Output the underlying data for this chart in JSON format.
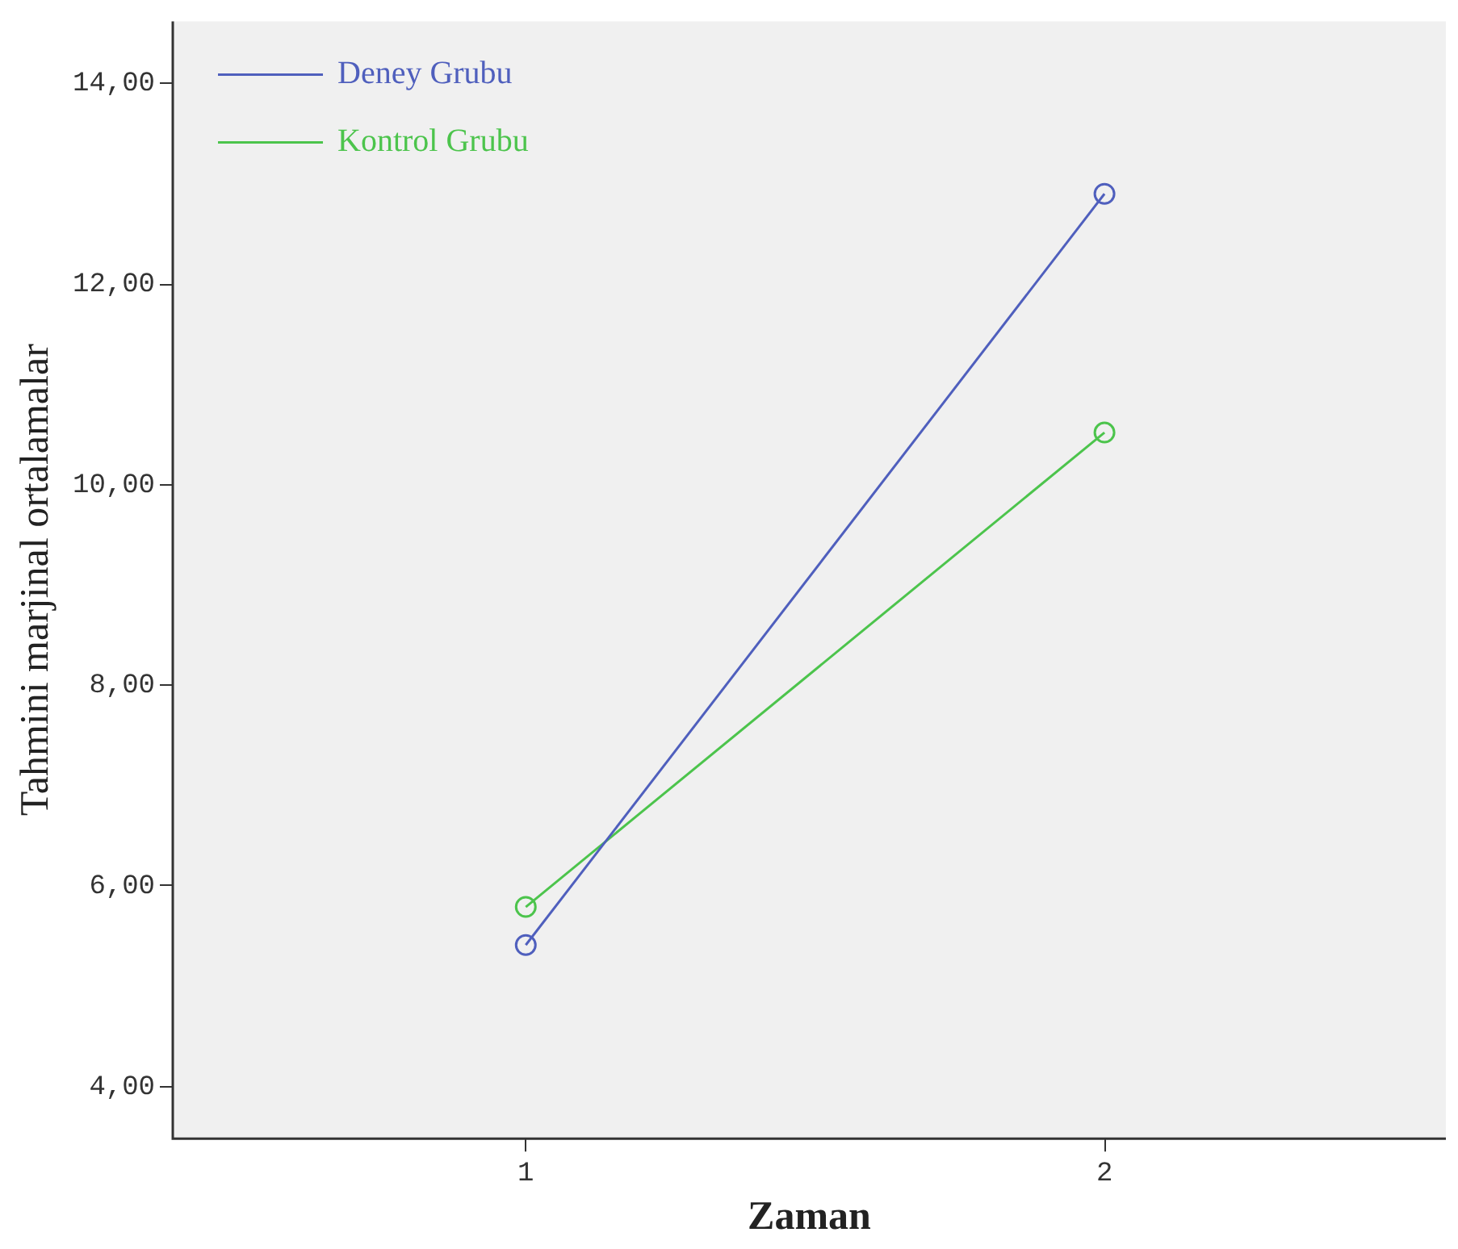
{
  "chart_data": {
    "type": "line",
    "xlabel": "Zaman",
    "ylabel": "Tahmini marjinal ortalamalar",
    "x": [
      1,
      2
    ],
    "xlim": [
      0.39,
      2.59
    ],
    "xticks": [
      1,
      2
    ],
    "series": [
      {
        "name": "Deney Grubu",
        "color": "#4f5fbd",
        "values": [
          5.41,
          12.9
        ]
      },
      {
        "name": "Kontrol Grubu",
        "color": "#4cc44c",
        "values": [
          5.79,
          10.52
        ]
      }
    ],
    "ylim": [
      3.48,
      14.62
    ],
    "yticks": [
      {
        "value": 4,
        "label": "4,00"
      },
      {
        "value": 6,
        "label": "6,00"
      },
      {
        "value": 8,
        "label": "8,00"
      },
      {
        "value": 10,
        "label": "10,00"
      },
      {
        "value": 12,
        "label": "12,00"
      },
      {
        "value": 14,
        "label": "14,00"
      }
    ],
    "grid": false,
    "legend": "top left",
    "marker": "circle",
    "line_style": "solid"
  }
}
